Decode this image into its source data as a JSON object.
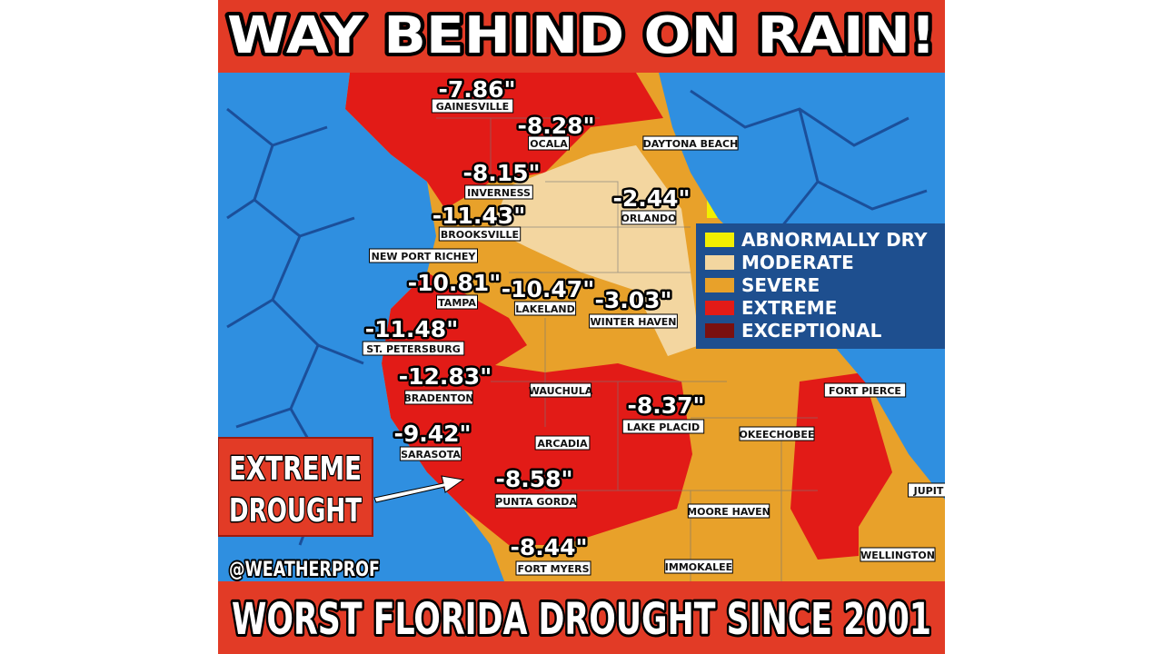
{
  "header": {
    "title": "WAY BEHIND ON RAIN!"
  },
  "footer": {
    "text": "WORST FLORIDA DROUGHT SINCE 2001"
  },
  "legend": [
    {
      "label": "ABNORMALLY DRY",
      "color": "#f2ef00"
    },
    {
      "label": "MODERATE",
      "color": "#f3d6a0"
    },
    {
      "label": "SEVERE",
      "color": "#e8a12a"
    },
    {
      "label": "EXTREME",
      "color": "#e21b17"
    },
    {
      "label": "EXCEPTIONAL",
      "color": "#7a1010"
    }
  ],
  "cities": [
    {
      "name": "GAINESVILLE",
      "deficit": "-7.86\""
    },
    {
      "name": "OCALA",
      "deficit": "-8.28\""
    },
    {
      "name": "DAYTONA BEACH"
    },
    {
      "name": "INVERNESS",
      "deficit": "-8.15\""
    },
    {
      "name": "ORLANDO",
      "deficit": "-2.44\""
    },
    {
      "name": "BROOKSVILLE",
      "deficit": "-11.43\""
    },
    {
      "name": "NEW PORT RICHEY"
    },
    {
      "name": "TAMPA",
      "deficit": "-10.81\""
    },
    {
      "name": "LAKELAND",
      "deficit": "-10.47\""
    },
    {
      "name": "WINTER HAVEN",
      "deficit": "-3.03\""
    },
    {
      "name": "ST. PETERSBURG",
      "deficit": "-11.48\""
    },
    {
      "name": "BRADENTON",
      "deficit": "-12.83\""
    },
    {
      "name": "WAUCHULA"
    },
    {
      "name": "LAKE PLACID",
      "deficit": "-8.37\""
    },
    {
      "name": "FORT PIERCE"
    },
    {
      "name": "OKEECHOBEE"
    },
    {
      "name": "SARASOTA",
      "deficit": "-9.42\""
    },
    {
      "name": "ARCADIA"
    },
    {
      "name": "PUNTA GORDA",
      "deficit": "-8.58\""
    },
    {
      "name": "MOORE HAVEN"
    },
    {
      "name": "JUPIT"
    },
    {
      "name": "WELLINGTON"
    },
    {
      "name": "FORT MYERS",
      "deficit": "-8.44\""
    },
    {
      "name": "IMMOKALEE"
    }
  ],
  "annotation": {
    "lines": [
      "EXTREME",
      "DROUGHT"
    ]
  },
  "credit": "@WEATHERPROF"
}
